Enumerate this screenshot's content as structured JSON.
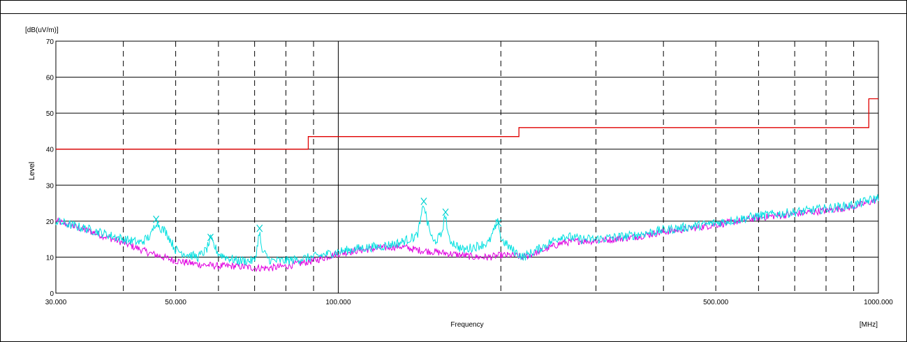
{
  "chart_data": {
    "type": "line",
    "title": "",
    "ylabel_unit": "[dB(uV/m)]",
    "ylabel": "Level",
    "xlabel": "Frequency",
    "xlabel_unit": "[MHz]",
    "x_scale": "log",
    "xlim": [
      30,
      1000
    ],
    "ylim": [
      0,
      70
    ],
    "yticks": [
      "0",
      "10",
      "20",
      "30",
      "40",
      "50",
      "60",
      "70"
    ],
    "xticks": [
      {
        "value": 30,
        "label": "30.000"
      },
      {
        "value": 50,
        "label": "50.000"
      },
      {
        "value": 100,
        "label": "100.000"
      },
      {
        "value": 500,
        "label": "500.000"
      },
      {
        "value": 1000,
        "label": "1000.000"
      }
    ],
    "grid": {
      "horizontal": true,
      "vertical_major": [
        100
      ],
      "vertical_minor_dashed": [
        40,
        50,
        60,
        70,
        80,
        90,
        200,
        300,
        400,
        500,
        600,
        700,
        800,
        900
      ]
    },
    "colors": {
      "limit": "#e00000",
      "magenta": "#e000e0",
      "cyan": "#00e0e0"
    },
    "series": [
      {
        "key": "limit",
        "points": [
          [
            30,
            40
          ],
          [
            88,
            40
          ],
          [
            88,
            43.5
          ],
          [
            216,
            43.5
          ],
          [
            216,
            46
          ],
          [
            960,
            46
          ],
          [
            960,
            54
          ],
          [
            1000,
            54
          ]
        ]
      },
      {
        "key": "magenta",
        "points": [
          [
            30,
            20
          ],
          [
            35,
            17
          ],
          [
            40,
            14
          ],
          [
            45,
            11
          ],
          [
            50,
            9
          ],
          [
            55,
            8
          ],
          [
            60,
            7.5
          ],
          [
            65,
            7.5
          ],
          [
            70,
            7
          ],
          [
            75,
            7
          ],
          [
            80,
            7.5
          ],
          [
            90,
            9
          ],
          [
            100,
            11
          ],
          [
            110,
            12
          ],
          [
            120,
            12.5
          ],
          [
            130,
            13
          ],
          [
            140,
            12
          ],
          [
            150,
            11.5
          ],
          [
            160,
            11
          ],
          [
            170,
            10.5
          ],
          [
            180,
            10
          ],
          [
            190,
            10
          ],
          [
            200,
            10.5
          ],
          [
            210,
            10.5
          ],
          [
            220,
            10
          ],
          [
            240,
            12
          ],
          [
            260,
            14
          ],
          [
            280,
            14.5
          ],
          [
            300,
            14.5
          ],
          [
            350,
            15.5
          ],
          [
            400,
            17
          ],
          [
            450,
            18
          ],
          [
            500,
            19
          ],
          [
            550,
            20
          ],
          [
            600,
            21
          ],
          [
            650,
            21.5
          ],
          [
            700,
            22
          ],
          [
            800,
            23
          ],
          [
            900,
            24
          ],
          [
            1000,
            26
          ]
        ]
      },
      {
        "key": "cyan",
        "points": [
          [
            30,
            20
          ],
          [
            35,
            17.5
          ],
          [
            40,
            15
          ],
          [
            43,
            14
          ],
          [
            45,
            16
          ],
          [
            46,
            20
          ],
          [
            47,
            18
          ],
          [
            48,
            17
          ],
          [
            50,
            12
          ],
          [
            52,
            11
          ],
          [
            55,
            10
          ],
          [
            57,
            12
          ],
          [
            58,
            15
          ],
          [
            59,
            13
          ],
          [
            60,
            11
          ],
          [
            62,
            10
          ],
          [
            65,
            9
          ],
          [
            68,
            9
          ],
          [
            70,
            9
          ],
          [
            71,
            14
          ],
          [
            71.5,
            18
          ],
          [
            72,
            12
          ],
          [
            75,
            9
          ],
          [
            80,
            9
          ],
          [
            90,
            10
          ],
          [
            100,
            11.5
          ],
          [
            110,
            12.5
          ],
          [
            120,
            13
          ],
          [
            130,
            14
          ],
          [
            140,
            16
          ],
          [
            142,
            20
          ],
          [
            144,
            25
          ],
          [
            146,
            20
          ],
          [
            150,
            14
          ],
          [
            155,
            16
          ],
          [
            158,
            22
          ],
          [
            160,
            15
          ],
          [
            170,
            12
          ],
          [
            180,
            13
          ],
          [
            190,
            14
          ],
          [
            195,
            18
          ],
          [
            198,
            20
          ],
          [
            200,
            15
          ],
          [
            210,
            12
          ],
          [
            220,
            10
          ],
          [
            240,
            13
          ],
          [
            260,
            16
          ],
          [
            280,
            15
          ],
          [
            300,
            15
          ],
          [
            350,
            16
          ],
          [
            400,
            17.5
          ],
          [
            450,
            18.5
          ],
          [
            500,
            19.5
          ],
          [
            550,
            20.5
          ],
          [
            600,
            21.5
          ],
          [
            650,
            22
          ],
          [
            700,
            22.5
          ],
          [
            800,
            23.5
          ],
          [
            900,
            24.5
          ],
          [
            1000,
            26.5
          ]
        ]
      }
    ],
    "markers": [
      {
        "x": 46,
        "y": 20.5
      },
      {
        "x": 58,
        "y": 15.5
      },
      {
        "x": 71.5,
        "y": 18
      },
      {
        "x": 144,
        "y": 25.5
      },
      {
        "x": 158,
        "y": 22.5
      },
      {
        "x": 198,
        "y": 19.5
      }
    ]
  }
}
